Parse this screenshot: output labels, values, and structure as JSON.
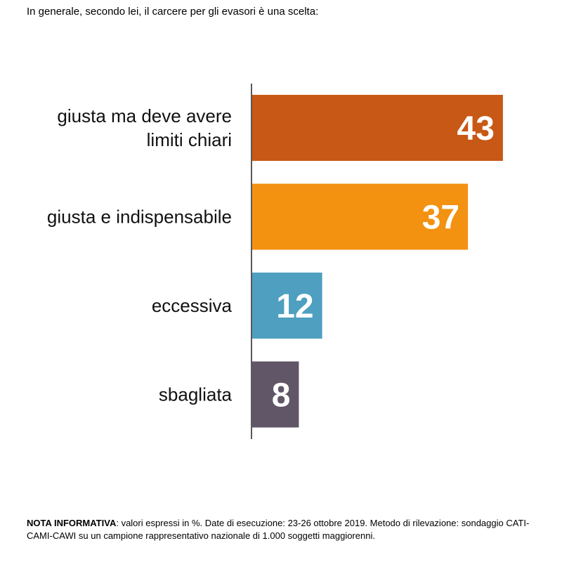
{
  "question": "In generale, secondo lei, il carcere per gli evasori è una scelta:",
  "chart_data": {
    "type": "bar",
    "orientation": "horizontal",
    "categories": [
      [
        "giusta ma deve avere",
        "limiti chiari"
      ],
      [
        "giusta e indispensabile"
      ],
      [
        "eccessiva"
      ],
      [
        "sbagliata"
      ]
    ],
    "values": [
      43,
      37,
      12,
      8
    ],
    "colors": [
      "#c85815",
      "#f39110",
      "#4e9fc0",
      "#615668"
    ],
    "xlim": [
      0,
      50
    ],
    "grid": false,
    "legend": "none"
  },
  "note": {
    "label": "NOTA INFORMATIVA",
    "text": ": valori espressi in %. Date di esecuzione: 23-26 ottobre 2019. Metodo di rilevazione: sondaggio CATI-CAMI-CAWI su un campione rappresentativo nazionale di 1.000 soggetti maggiorenni."
  }
}
